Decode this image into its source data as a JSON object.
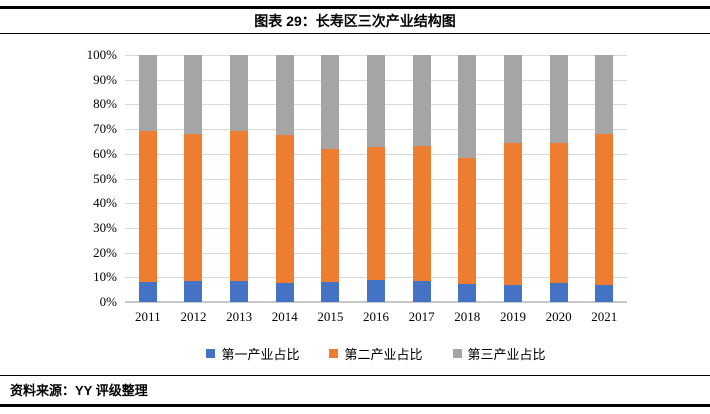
{
  "header": {
    "title": "图表 29：长寿区三次产业结构图"
  },
  "footer": {
    "source": "资料来源：YY 评级整理"
  },
  "chart_data": {
    "type": "bar",
    "subtype": "stacked-100-percent",
    "title": "图表 29：长寿区三次产业结构图",
    "categories": [
      "2011",
      "2012",
      "2013",
      "2014",
      "2015",
      "2016",
      "2017",
      "2018",
      "2019",
      "2020",
      "2021"
    ],
    "series": [
      {
        "name": "第一产业占比",
        "color": "#4472C4",
        "values": [
          8.2,
          8.6,
          8.5,
          7.8,
          8.1,
          9.0,
          8.3,
          7.1,
          7.0,
          7.7,
          7.0
        ]
      },
      {
        "name": "第二产业占比",
        "color": "#ED7D31",
        "values": [
          61.0,
          59.4,
          60.7,
          59.9,
          54.0,
          53.6,
          55.0,
          51.3,
          57.4,
          56.5,
          61.0
        ]
      },
      {
        "name": "第三产业占比",
        "color": "#A5A5A5",
        "values": [
          30.8,
          32.0,
          30.8,
          32.3,
          37.9,
          37.4,
          36.7,
          41.6,
          35.6,
          35.8,
          32.0
        ]
      }
    ],
    "yticks": [
      "0%",
      "10%",
      "20%",
      "30%",
      "40%",
      "50%",
      "60%",
      "70%",
      "80%",
      "90%",
      "100%"
    ],
    "ylim": [
      0,
      100
    ],
    "xlabel": "",
    "ylabel": "",
    "grid": true,
    "legend_position": "bottom",
    "gridline_color": "#d9d9d9",
    "axisline_color": "#c8c8c8"
  }
}
